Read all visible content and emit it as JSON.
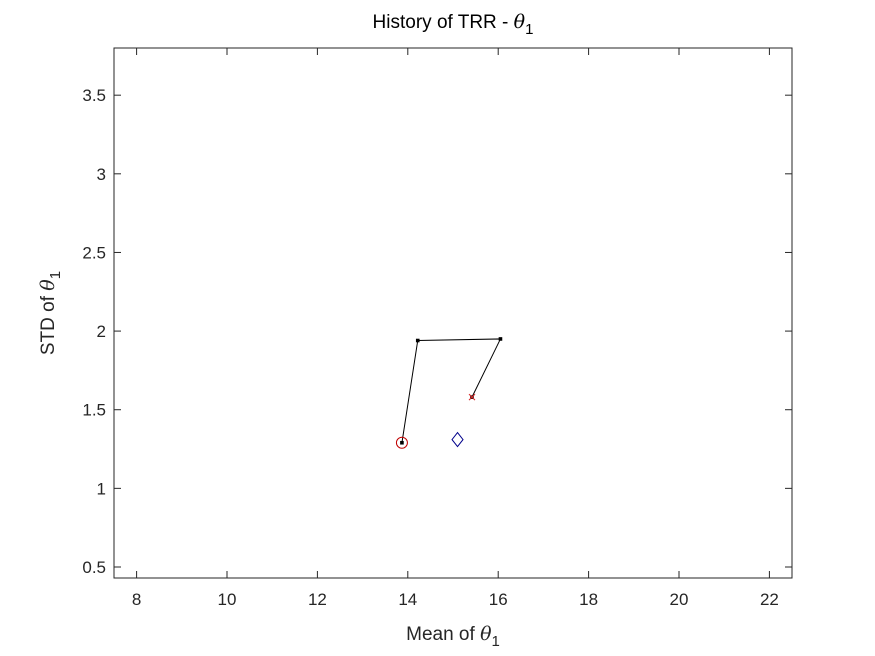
{
  "chart_data": {
    "type": "line",
    "title": {
      "text": "History of TRR - ",
      "symbol": "θ",
      "subscript": "1"
    },
    "xlabel": {
      "text": "Mean of ",
      "symbol": "θ",
      "subscript": "1"
    },
    "ylabel": {
      "text": "STD of ",
      "symbol": "θ",
      "subscript": "1"
    },
    "xlim": [
      7.5,
      22.5
    ],
    "ylim": [
      0.43,
      3.8
    ],
    "xticks": [
      8,
      10,
      12,
      14,
      16,
      18,
      20,
      22
    ],
    "xtick_labels": [
      "8",
      "10",
      "12",
      "14",
      "16",
      "18",
      "20",
      "22"
    ],
    "yticks": [
      0.5,
      1,
      1.5,
      2,
      2.5,
      3,
      3.5
    ],
    "ytick_labels": [
      "0.5",
      "1",
      "1.5",
      "2",
      "2.5",
      "3",
      "3.5"
    ],
    "grid": false,
    "series": [
      {
        "x": [
          15.42,
          16.05,
          14.22,
          13.87
        ],
        "y": [
          1.58,
          1.95,
          1.94,
          1.29
        ],
        "color": "#000000",
        "marker": "dot"
      }
    ],
    "markers": [
      {
        "shape": "x",
        "x": 15.42,
        "y": 1.58,
        "color": "#d62728"
      },
      {
        "shape": "circle",
        "x": 13.87,
        "y": 1.29,
        "color": "#c00000"
      },
      {
        "shape": "diamond",
        "x": 15.1,
        "y": 1.31,
        "color": "#00008b"
      }
    ]
  }
}
